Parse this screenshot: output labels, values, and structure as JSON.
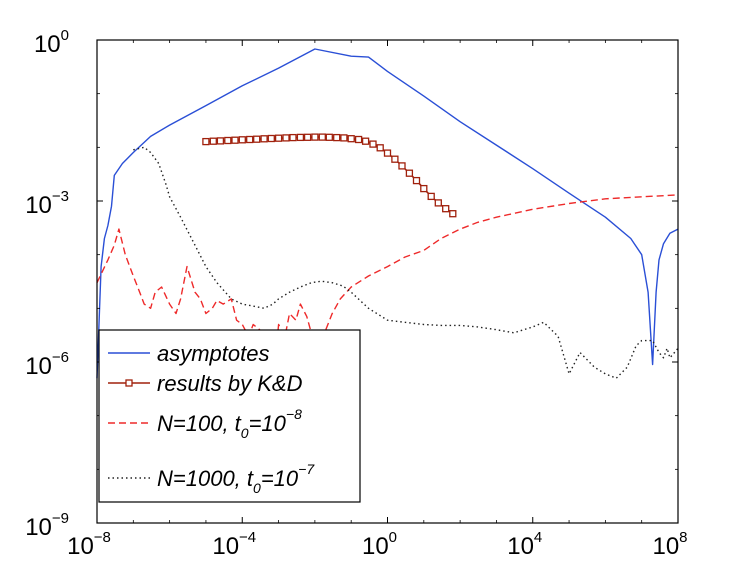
{
  "chart_data": {
    "type": "line",
    "xscale": "log",
    "yscale": "log",
    "xlim": [
      1e-08,
      100000000.0
    ],
    "ylim": [
      1e-09,
      1
    ],
    "xticks": [
      {
        "base": "10",
        "exp": "−8",
        "value": 1e-08
      },
      {
        "base": "10",
        "exp": "−4",
        "value": 0.0001
      },
      {
        "base": "10",
        "exp": "0",
        "value": 1
      },
      {
        "base": "10",
        "exp": "4",
        "value": 10000.0
      },
      {
        "base": "10",
        "exp": "8",
        "value": 100000000.0
      }
    ],
    "yticks": [
      {
        "base": "10",
        "exp": "−9",
        "value": 1e-09
      },
      {
        "base": "10",
        "exp": "−6",
        "value": 1e-06
      },
      {
        "base": "10",
        "exp": "−3",
        "value": 0.001
      },
      {
        "base": "10",
        "exp": "0",
        "value": 1
      }
    ],
    "grid": false,
    "legend_position": "bottom-left",
    "series": [
      {
        "name": "asymptotes",
        "label": "asymptotes",
        "color": "#2a4fd6",
        "style": "solid",
        "x": [
          1e-08,
          1.3e-08,
          1.6e-08,
          2e-08,
          2.5e-08,
          3e-08,
          5e-08,
          1e-07,
          3e-07,
          1e-06,
          1e-05,
          0.0001,
          0.001,
          0.01,
          0.1,
          0.3,
          1,
          10,
          100,
          1000.0,
          10000.0,
          100000.0,
          1000000.0,
          5000000.0,
          10000000.0,
          15000000.0,
          20000000.0,
          25000000.0,
          30000000.0,
          40000000.0,
          60000000.0,
          100000000.0
        ],
        "y": [
          5e-07,
          6e-05,
          0.0002,
          0.00035,
          0.0008,
          0.003,
          0.005,
          0.008,
          0.016,
          0.026,
          0.06,
          0.14,
          0.3,
          0.68,
          0.5,
          0.48,
          0.26,
          0.09,
          0.03,
          0.011,
          0.004,
          0.0014,
          0.0005,
          0.0002,
          0.0001,
          2e-05,
          9e-07,
          2e-05,
          8e-05,
          0.00016,
          0.00025,
          0.0003
        ]
      },
      {
        "name": "results by K&D",
        "label": "results by K&D",
        "color": "#a0200c",
        "style": "solid-square-markers",
        "x": [
          1e-05,
          1.6e-05,
          2.5e-05,
          4e-05,
          6.3e-05,
          0.0001,
          0.00016,
          0.00025,
          0.0004,
          0.00063,
          0.001,
          0.0016,
          0.0025,
          0.004,
          0.0063,
          0.01,
          0.016,
          0.025,
          0.04,
          0.063,
          0.1,
          0.16,
          0.25,
          0.4,
          0.63,
          1,
          1.6,
          2.5,
          4,
          6.3,
          10,
          16,
          25,
          40,
          63
        ],
        "y": [
          0.0128,
          0.013,
          0.0132,
          0.0134,
          0.0136,
          0.0138,
          0.014,
          0.0142,
          0.0144,
          0.0146,
          0.0148,
          0.015,
          0.0152,
          0.0153,
          0.0154,
          0.0155,
          0.0155,
          0.0154,
          0.0152,
          0.015,
          0.0145,
          0.014,
          0.013,
          0.0115,
          0.0098,
          0.0078,
          0.006,
          0.0045,
          0.0033,
          0.0024,
          0.0017,
          0.00122,
          0.00092,
          0.00072,
          0.00058
        ]
      },
      {
        "name": "N=100, t0=1e-8",
        "label_main": "N=100, t",
        "label_sub": "0",
        "label_eq": "=10",
        "label_sup": "−8",
        "color": "#ee2a2a",
        "style": "dashed",
        "x": [
          1e-08,
          2e-08,
          3e-08,
          4e-08,
          6e-08,
          1e-07,
          1.5e-07,
          2e-07,
          3e-07,
          4e-07,
          6e-07,
          1e-06,
          1.5e-06,
          2e-06,
          3e-06,
          5e-06,
          7e-06,
          1e-05,
          1.5e-05,
          2e-05,
          3e-05,
          5e-05,
          7e-05,
          0.0001,
          0.00015,
          0.0002,
          0.0003,
          0.0004,
          0.0005,
          0.0006,
          0.0008,
          0.001,
          0.0015,
          0.002,
          0.003,
          0.004,
          0.006,
          0.01,
          0.02,
          0.03,
          0.05,
          0.1,
          0.3,
          1,
          3,
          10,
          30,
          100,
          300,
          1000.0,
          10000.0,
          100000.0,
          1000000.0,
          10000000.0,
          100000000.0
        ],
        "y": [
          3e-05,
          8e-05,
          0.00015,
          0.0003,
          0.0001,
          4e-05,
          2e-05,
          1.2e-05,
          1e-05,
          2e-05,
          2.5e-05,
          1.2e-05,
          8e-06,
          1.5e-05,
          6e-05,
          2e-05,
          1.5e-05,
          8e-06,
          1e-05,
          1.4e-05,
          1.2e-05,
          1.5e-05,
          6e-06,
          5e-06,
          3e-06,
          5e-06,
          4e-06,
          3e-06,
          8e-07,
          2e-07,
          1e-06,
          5e-06,
          3e-06,
          8e-06,
          6e-06,
          1.2e-05,
          7e-06,
          2e-06,
          4e-06,
          8e-06,
          1.5e-05,
          2.5e-05,
          4e-05,
          6e-05,
          9e-05,
          0.00012,
          0.0002,
          0.0003,
          0.0004,
          0.0005,
          0.0007,
          0.0009,
          0.0011,
          0.0012,
          0.0013
        ]
      },
      {
        "name": "N=1000, t0=1e-7",
        "label_main": "N=1000, t",
        "label_sub": "0",
        "label_eq": "=10",
        "label_sup": "−7",
        "color": "#222222",
        "style": "dotted",
        "x": [
          1e-07,
          2e-07,
          3e-07,
          5e-07,
          8e-07,
          1e-06,
          2e-06,
          5e-06,
          1e-05,
          2e-05,
          5e-05,
          0.0001,
          0.0002,
          0.0004,
          0.0007,
          0.001,
          0.002,
          0.004,
          0.008,
          0.015,
          0.03,
          0.06,
          0.1,
          0.3,
          1,
          3,
          10,
          30,
          100,
          300,
          1000.0,
          3000.0,
          10000.0,
          20000.0,
          50000.0,
          100000.0,
          200000.0,
          500000.0,
          1000000.0,
          2000000.0,
          4000000.0,
          7000000.0,
          10000000.0,
          20000000.0,
          30000000.0,
          40000000.0,
          50000000.0,
          60000000.0,
          80000000.0,
          100000000.0
        ],
        "y": [
          0.009,
          0.01,
          0.008,
          0.005,
          0.002,
          0.0012,
          0.0005,
          0.00015,
          6e-05,
          3e-05,
          1.5e-05,
          1.2e-05,
          1.1e-05,
          1e-05,
          1.2e-05,
          1.5e-05,
          2e-05,
          2.5e-05,
          3e-05,
          3.2e-05,
          3e-05,
          2.6e-05,
          2e-05,
          1e-05,
          6e-06,
          5.5e-06,
          5e-06,
          4.8e-06,
          4.8e-06,
          4.5e-06,
          4e-06,
          3.5e-06,
          4.5e-06,
          5.5e-06,
          3e-06,
          6e-07,
          1.5e-06,
          8e-07,
          6e-07,
          5e-07,
          8e-07,
          2e-06,
          2.5e-06,
          2.5e-06,
          1.5e-06,
          1.2e-06,
          1.8e-06,
          1.2e-06,
          1.5e-06,
          1.8e-06
        ]
      }
    ]
  }
}
